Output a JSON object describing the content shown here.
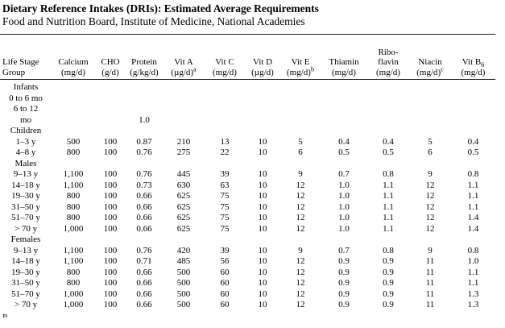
{
  "title": "Dietary Reference Intakes (DRIs): Estimated Average Requirements",
  "subtitle": "Food and Nutrition Board, Institute of Medicine, National Academies",
  "clipped_text": "P",
  "colors": {
    "background": "#ffffff",
    "text": "#000000",
    "rule": "#1a1a1a"
  },
  "table": {
    "columns": [
      "Life Stage\nGroup",
      "Calcium\n(mg/d)",
      "CHO\n(g/d)",
      "Protein\n(g/kg/d)",
      "Vit A\n(µg/d)^{a}",
      "Vit C\n(mg/d)",
      "Vit D\n(µg/d)",
      "Vit E\n(mg/d)^{b}",
      "Thiamin\n(mg/d)",
      "Ribo-\nflavin\n(mg/d)",
      "Niacin\n(mg/d)^{c}",
      "Vit B_{6}\n(mg/d)"
    ],
    "rows": [
      {
        "label": "Infants",
        "style": "g1",
        "values": [
          "",
          "",
          "",
          "",
          "",
          "",
          "",
          "",
          "",
          "",
          ""
        ]
      },
      {
        "label": "0 to 6 mo",
        "style": "sub",
        "values": [
          "",
          "",
          "",
          "",
          "",
          "",
          "",
          "",
          "",
          "",
          ""
        ]
      },
      {
        "label": "6 to 12",
        "style": "flush",
        "values": [
          "",
          "",
          "",
          "",
          "",
          "",
          "",
          "",
          "",
          "",
          ""
        ]
      },
      {
        "label": "mo",
        "style": "flush",
        "values": [
          "",
          "",
          "1.0",
          "",
          "",
          "",
          "",
          "",
          "",
          "",
          ""
        ]
      },
      {
        "label": "Children",
        "style": "g2",
        "values": [
          "",
          "",
          "",
          "",
          "",
          "",
          "",
          "",
          "",
          "",
          ""
        ]
      },
      {
        "label": "1–3 y",
        "style": "age",
        "values": [
          "500",
          "100",
          "0.87",
          "210",
          "13",
          "10",
          "5",
          "0.4",
          "0.4",
          "5",
          "0.4"
        ]
      },
      {
        "label": "4–8 y",
        "style": "age",
        "values": [
          "800",
          "100",
          "0.76",
          "275",
          "22",
          "10",
          "6",
          "0.5",
          "0.5",
          "6",
          "0.5"
        ]
      },
      {
        "label": "Males",
        "style": "g2",
        "values": [
          "",
          "",
          "",
          "",
          "",
          "",
          "",
          "",
          "",
          "",
          ""
        ]
      },
      {
        "label": "9–13 y",
        "style": "age",
        "values": [
          "1,100",
          "100",
          "0.76",
          "445",
          "39",
          "10",
          "9",
          "0.7",
          "0.8",
          "9",
          "0.8"
        ]
      },
      {
        "label": "14–18 y",
        "style": "age",
        "values": [
          "1,100",
          "100",
          "0.73",
          "630",
          "63",
          "10",
          "12",
          "1.0",
          "1.1",
          "12",
          "1.1"
        ]
      },
      {
        "label": "19–30 y",
        "style": "age",
        "values": [
          "800",
          "100",
          "0.66",
          "625",
          "75",
          "10",
          "12",
          "1.0",
          "1.1",
          "12",
          "1.1"
        ]
      },
      {
        "label": "31–50 y",
        "style": "age",
        "values": [
          "800",
          "100",
          "0.66",
          "625",
          "75",
          "10",
          "12",
          "1.0",
          "1.1",
          "12",
          "1.1"
        ]
      },
      {
        "label": "51–70 y",
        "style": "age",
        "values": [
          "800",
          "100",
          "0.66",
          "625",
          "75",
          "10",
          "12",
          "1.0",
          "1.1",
          "12",
          "1.4"
        ]
      },
      {
        "label": "> 70 y",
        "style": "age",
        "values": [
          "1,000",
          "100",
          "0.66",
          "625",
          "75",
          "10",
          "12",
          "1.0",
          "1.1",
          "12",
          "1.4"
        ]
      },
      {
        "label": "Females",
        "style": "g2",
        "values": [
          "",
          "",
          "",
          "",
          "",
          "",
          "",
          "",
          "",
          "",
          ""
        ]
      },
      {
        "label": "9–13 y",
        "style": "age",
        "values": [
          "1,100",
          "100",
          "0.76",
          "420",
          "39",
          "10",
          "9",
          "0.7",
          "0.8",
          "9",
          "0.8"
        ]
      },
      {
        "label": "14–18 y",
        "style": "age",
        "values": [
          "1,100",
          "100",
          "0.71",
          "485",
          "56",
          "10",
          "12",
          "0.9",
          "0.9",
          "11",
          "1.0"
        ]
      },
      {
        "label": "19–30 y",
        "style": "age",
        "values": [
          "800",
          "100",
          "0.66",
          "500",
          "60",
          "10",
          "12",
          "0.9",
          "0.9",
          "11",
          "1.1"
        ]
      },
      {
        "label": "31–50 y",
        "style": "age",
        "values": [
          "800",
          "100",
          "0.66",
          "500",
          "60",
          "10",
          "12",
          "0.9",
          "0.9",
          "11",
          "1.1"
        ]
      },
      {
        "label": "51–70 y",
        "style": "age",
        "values": [
          "1,000",
          "100",
          "0.66",
          "500",
          "60",
          "10",
          "12",
          "0.9",
          "0.9",
          "11",
          "1.3"
        ]
      },
      {
        "label": "> 70 y",
        "style": "age",
        "values": [
          "1,000",
          "100",
          "0.66",
          "500",
          "60",
          "10",
          "12",
          "0.9",
          "0.9",
          "11",
          "1.3"
        ]
      }
    ]
  }
}
